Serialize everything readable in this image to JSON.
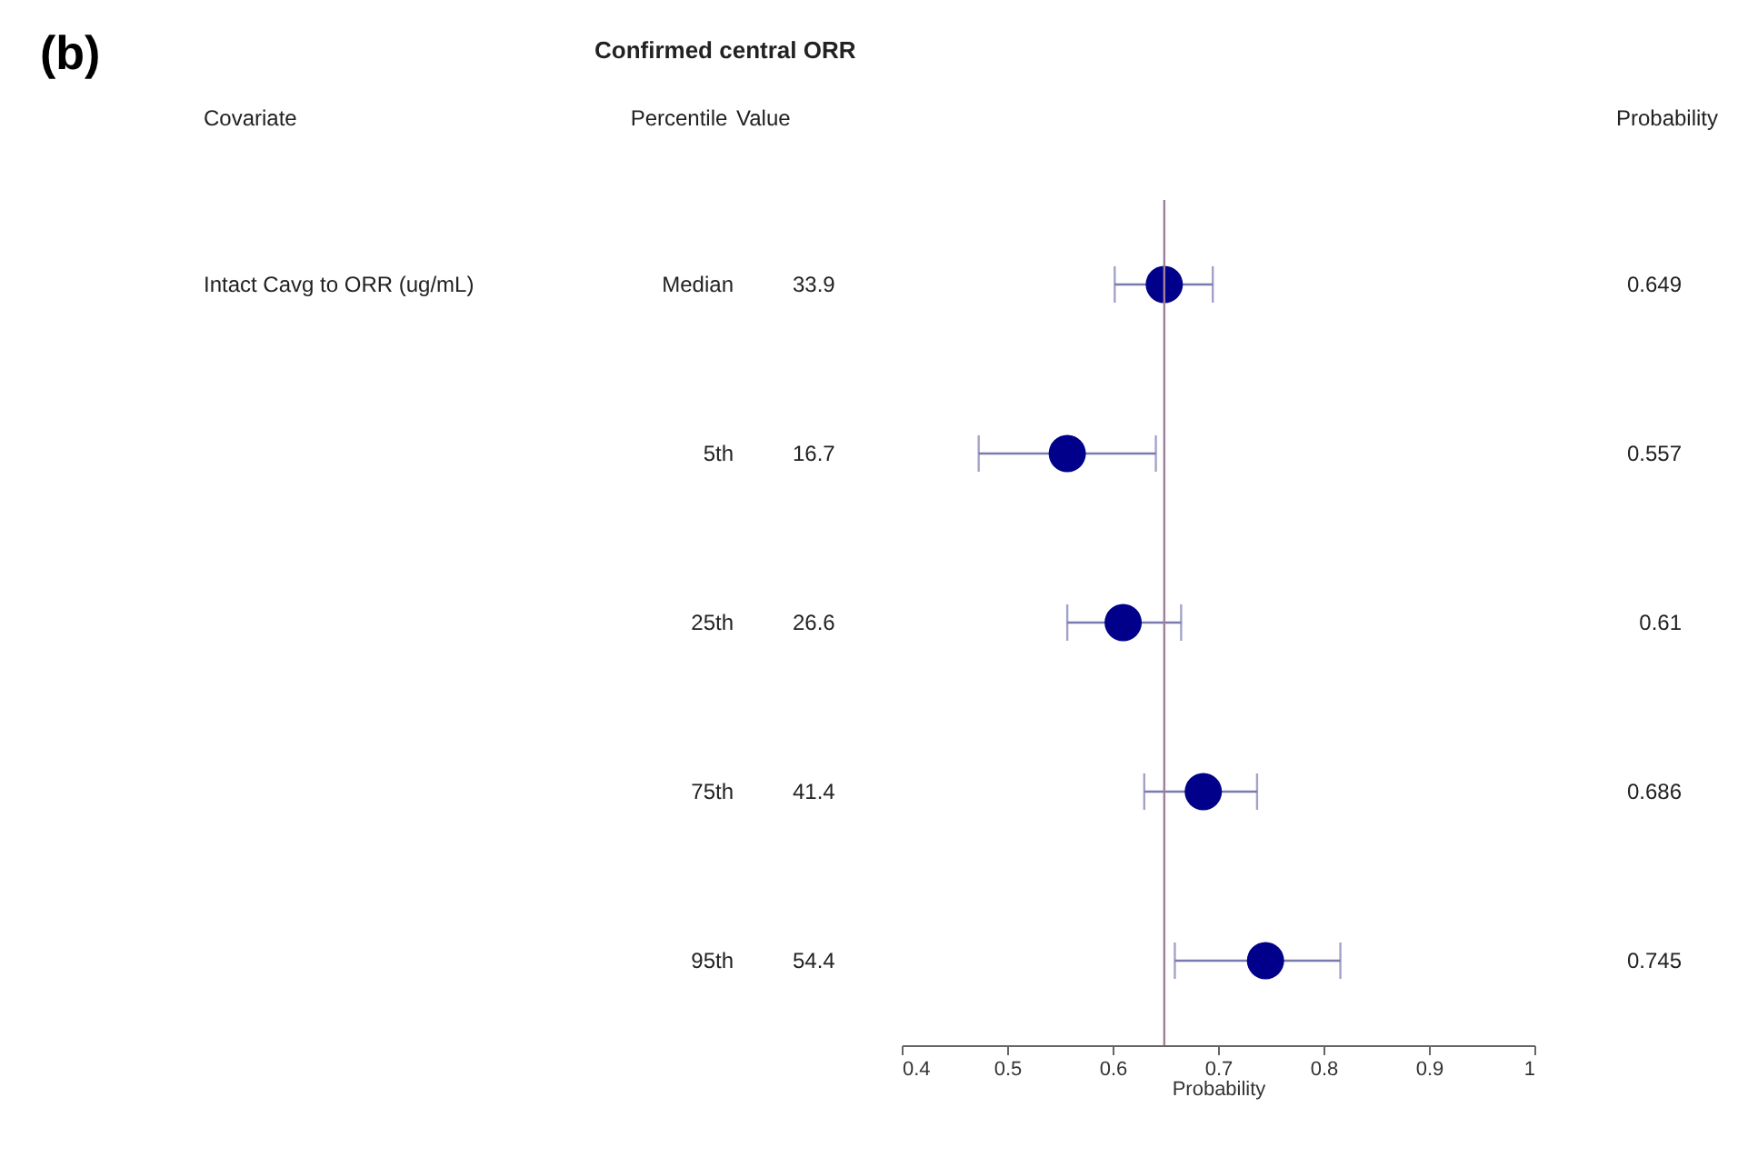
{
  "chart_data": {
    "type": "scatter",
    "title": "Confirmed central ORR",
    "xlabel": "Probability",
    "categories": [
      "Median",
      "5th",
      "25th",
      "75th",
      "95th"
    ],
    "series": [
      {
        "color": "#00008b",
        "values": [
          0.649,
          0.557,
          0.61,
          0.686,
          0.745
        ],
        "errors": [
          [
            0.602,
            0.695
          ],
          [
            0.473,
            0.641
          ],
          [
            0.557,
            0.665
          ],
          [
            0.63,
            0.737
          ],
          [
            0.659,
            0.816
          ]
        ]
      }
    ],
    "orientation": "horizontal",
    "data_labels": true,
    "marker": "circle",
    "grid": false,
    "xlim": [
      0.4,
      1
    ],
    "xticks": [
      0.4,
      0.5,
      0.6,
      0.7,
      0.8,
      0.9,
      1
    ],
    "ref_lines": [
      {
        "axis": "x",
        "value": 0.649,
        "color": "#a08098"
      }
    ],
    "annotations": [
      "(b)",
      "Covariate",
      "Value",
      "Probability",
      "Intact Cavg to ORR (ug/mL)",
      "33.9",
      "16.7",
      "26.6",
      "41.4",
      "54.4",
      "Percentile"
    ]
  }
}
